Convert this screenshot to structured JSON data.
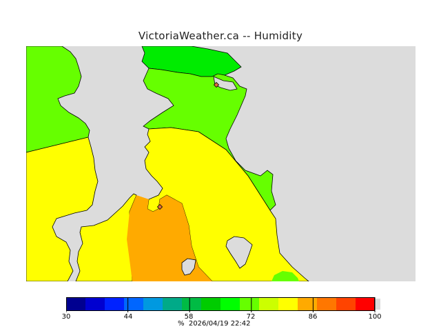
{
  "title": "VictoriaWeather.ca -- Humidity",
  "map": {
    "colors": {
      "ocean": "#dcdcdc",
      "green": "#00ec00",
      "light_green": "#66ff00",
      "yellow": "#ffff00",
      "orange": "#ffaa00",
      "marker": "#e07040",
      "coast": "#000000"
    },
    "markers": [
      "station-marker",
      "station-marker"
    ]
  },
  "legend": {
    "colors": [
      "#000090",
      "#0000d0",
      "#0022ff",
      "#0066ff",
      "#0099e0",
      "#00aa88",
      "#00bb44",
      "#00cc00",
      "#00ff00",
      "#66ff00",
      "#ccff00",
      "#ffff00",
      "#ffaa00",
      "#ff7700",
      "#ff4400",
      "#ff0000"
    ],
    "end_color": "#dcdcdc",
    "tick_labels": [
      "30",
      "44",
      "58",
      "72",
      "86",
      "100"
    ],
    "unit": "%",
    "timestamp": "2026/04/19 22:42"
  }
}
